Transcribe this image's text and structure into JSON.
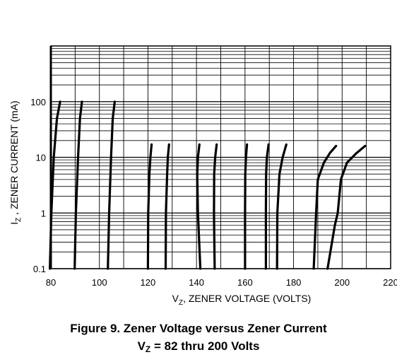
{
  "chart_data": {
    "type": "line",
    "xlabel_main": "V",
    "xlabel_sub": "Z",
    "xlabel_rest": ", ZENER VOLTAGE (VOLTS)",
    "ylabel_main": "I",
    "ylabel_sub": "Z",
    "ylabel_rest": " , ZENER CURRENT (mA)",
    "x_ticks": [
      "80",
      "100",
      "120",
      "140",
      "160",
      "180",
      "200",
      "220"
    ],
    "y_ticks": [
      "0.1",
      "1",
      "10",
      "100"
    ],
    "xlim": [
      80,
      220
    ],
    "ylim": [
      0.1,
      1000
    ],
    "y_scale": "log",
    "grid": true,
    "series": [
      {
        "values": [
          [
            79.6,
            0.1
          ],
          [
            80.2,
            1
          ],
          [
            81.2,
            10
          ],
          [
            82.5,
            50
          ],
          [
            83.8,
            100
          ]
        ]
      },
      {
        "values": [
          [
            89.8,
            0.1
          ],
          [
            90.3,
            1
          ],
          [
            91.2,
            10
          ],
          [
            92.0,
            50
          ],
          [
            92.8,
            100
          ]
        ]
      },
      {
        "values": [
          [
            103.5,
            0.1
          ],
          [
            104.0,
            1
          ],
          [
            104.8,
            10
          ],
          [
            105.5,
            50
          ],
          [
            106.3,
            100
          ]
        ]
      },
      {
        "values": [
          [
            120.0,
            0.1
          ],
          [
            120.1,
            1
          ],
          [
            120.6,
            5
          ],
          [
            121.0,
            10
          ],
          [
            121.5,
            17
          ]
        ]
      },
      {
        "values": [
          [
            127.3,
            0.1
          ],
          [
            127.4,
            1
          ],
          [
            127.9,
            5
          ],
          [
            128.2,
            10
          ],
          [
            128.7,
            17
          ]
        ]
      },
      {
        "values": [
          [
            141.6,
            0.1
          ],
          [
            140.6,
            1
          ],
          [
            140.3,
            5
          ],
          [
            140.6,
            10
          ],
          [
            141.2,
            17
          ]
        ]
      },
      {
        "values": [
          [
            147.5,
            0.1
          ],
          [
            147.2,
            1
          ],
          [
            147.3,
            5
          ],
          [
            147.7,
            10
          ],
          [
            148.3,
            17
          ]
        ]
      },
      {
        "values": [
          [
            160.0,
            0.1
          ],
          [
            160.0,
            1
          ],
          [
            160.1,
            5
          ],
          [
            160.4,
            10
          ],
          [
            160.8,
            17
          ]
        ]
      },
      {
        "values": [
          [
            168.6,
            0.1
          ],
          [
            168.6,
            1
          ],
          [
            168.7,
            5
          ],
          [
            169.0,
            10
          ],
          [
            169.7,
            17
          ]
        ]
      },
      {
        "values": [
          [
            173.2,
            0.1
          ],
          [
            173.3,
            1
          ],
          [
            174.2,
            5
          ],
          [
            175.5,
            10
          ],
          [
            177.0,
            17
          ]
        ]
      },
      {
        "values": [
          [
            188.3,
            0.1
          ],
          [
            189.3,
            1
          ],
          [
            190.0,
            4
          ],
          [
            192.5,
            8
          ],
          [
            195.0,
            12
          ],
          [
            197.5,
            16
          ]
        ]
      },
      {
        "values": [
          [
            194.0,
            0.1
          ],
          [
            197.0,
            0.6
          ],
          [
            198.2,
            1
          ],
          [
            199.5,
            4
          ],
          [
            202.0,
            8
          ],
          [
            206.0,
            12
          ],
          [
            209.5,
            16
          ]
        ]
      }
    ]
  },
  "caption": {
    "line1": "Figure 9. Zener Voltage versus Zener Current",
    "line2_main": "V",
    "line2_sub": "Z",
    "line2_rest": " = 82 thru 200 Volts"
  }
}
